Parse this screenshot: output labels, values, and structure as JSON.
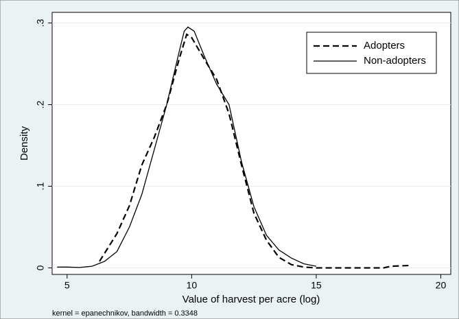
{
  "chart_data": {
    "type": "line",
    "x_label": "Value of harvest per acre (log)",
    "y_label": "Density",
    "note": "kernel = epanechnikov, bandwidth = 0.3348",
    "xlim": [
      4.4,
      20.4
    ],
    "ylim": [
      -0.008,
      0.313
    ],
    "xticks": [
      5,
      10,
      15,
      20
    ],
    "yticks": [
      0,
      {
        "value": 0.1,
        "label": ".1"
      },
      {
        "value": 0.2,
        "label": ".2"
      },
      {
        "value": 0.3,
        "label": ".3"
      }
    ],
    "grid": true,
    "legend_position": "top-right",
    "series": [
      {
        "name": "Adopters",
        "color": "#000000",
        "dash": "dashed",
        "x": [
          6.3,
          7,
          7.5,
          8,
          8.5,
          9,
          9.5,
          9.8,
          10,
          10.5,
          11,
          11.5,
          12,
          12.5,
          13,
          13.5,
          14,
          14.5,
          15,
          16,
          17,
          17.7,
          18,
          18.8
        ],
        "values": [
          0.008,
          0.042,
          0.076,
          0.126,
          0.16,
          0.2,
          0.256,
          0.286,
          0.282,
          0.256,
          0.231,
          0.189,
          0.126,
          0.067,
          0.034,
          0.013,
          0.004,
          0.001,
          0,
          0,
          0,
          0,
          0.002,
          0.003
        ]
      },
      {
        "name": "Non-adopters",
        "color": "#000000",
        "dash": "solid",
        "x": [
          4.6,
          5,
          5.5,
          6,
          6.5,
          7,
          7.5,
          8,
          8.5,
          9,
          9.5,
          9.7,
          9.85,
          10.1,
          10.5,
          11,
          11.5,
          12,
          12.5,
          13,
          13.5,
          14,
          14.5,
          15
        ],
        "values": [
          0.001,
          0.001,
          0.0005,
          0.002,
          0.008,
          0.02,
          0.05,
          0.09,
          0.145,
          0.2,
          0.265,
          0.29,
          0.295,
          0.29,
          0.26,
          0.225,
          0.2,
          0.13,
          0.075,
          0.04,
          0.022,
          0.012,
          0.005,
          0.002
        ]
      }
    ]
  }
}
